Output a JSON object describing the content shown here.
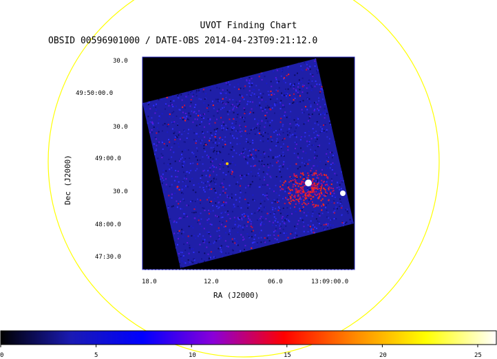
{
  "chart_data": {
    "type": "heatmap",
    "title": "UVOT Finding Chart",
    "subtitle": "OBSID 00596901000 / DATE-OBS 2014-04-23T09:21:12.0",
    "xlabel": "RA (J2000)",
    "ylabel": "Dec (J2000)",
    "x_ticks": [
      "18.0",
      "12.0",
      "06.0",
      "13:09:00.0"
    ],
    "y_ticks": [
      "30.0",
      "49:50:00.0",
      "30.0",
      "49:00.0",
      "30.0",
      "48:00.0",
      "47:30.0"
    ],
    "colorbar": {
      "min": 0,
      "max": 25,
      "ticks": [
        0,
        5,
        10,
        15,
        20,
        25
      ],
      "colormap": [
        "#000000",
        "#1a1ab4",
        "#0000ff",
        "#8a00d8",
        "#ff0000",
        "#ff8800",
        "#ffff00",
        "#ffffff"
      ]
    },
    "grid": false,
    "legend": "none"
  },
  "colors": {
    "background": "#ffffff",
    "field_of_view_circle": "#ffff00",
    "image_background": "#000000"
  }
}
